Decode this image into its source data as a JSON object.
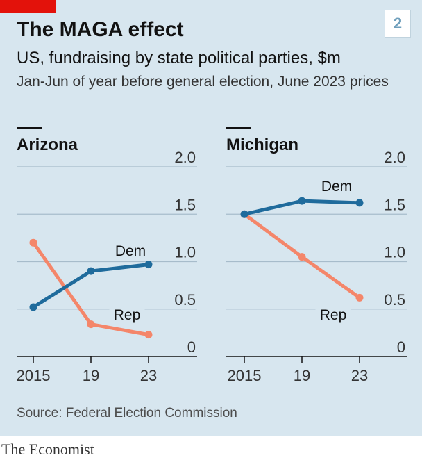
{
  "header": {
    "title": "The MAGA effect",
    "chart_number": "2",
    "subtitle": "US, fundraising by state political parties, $m",
    "note": "Jan-Jun of year before general election, June 2023 prices"
  },
  "footer": {
    "source": "Source: Federal Election Commission",
    "brand": "The Economist"
  },
  "colors": {
    "background": "#d7e6ef",
    "dem": "#1f6b9c",
    "rep": "#f4866a",
    "accent": "#e3120b"
  },
  "chart_data": [
    {
      "type": "line",
      "title": "Arizona",
      "x": [
        2015,
        2019,
        2023
      ],
      "x_tick_labels": [
        "2015",
        "19",
        "23"
      ],
      "ylim": [
        0,
        2.0
      ],
      "y_ticks": [
        0,
        0.5,
        1.0,
        1.5,
        2.0
      ],
      "y_tick_labels": [
        "0",
        "0.5",
        "1.0",
        "1.5",
        "2.0"
      ],
      "grid": true,
      "series": [
        {
          "name": "Dem",
          "color": "#1f6b9c",
          "values": [
            0.52,
            0.9,
            0.97
          ]
        },
        {
          "name": "Rep",
          "color": "#f4866a",
          "values": [
            1.2,
            0.34,
            0.23
          ]
        }
      ]
    },
    {
      "type": "line",
      "title": "Michigan",
      "x": [
        2015,
        2019,
        2023
      ],
      "x_tick_labels": [
        "2015",
        "19",
        "23"
      ],
      "ylim": [
        0,
        2.0
      ],
      "y_ticks": [
        0,
        0.5,
        1.0,
        1.5,
        2.0
      ],
      "y_tick_labels": [
        "0",
        "0.5",
        "1.0",
        "1.5",
        "2.0"
      ],
      "grid": true,
      "series": [
        {
          "name": "Dem",
          "color": "#1f6b9c",
          "values": [
            1.5,
            1.64,
            1.62
          ]
        },
        {
          "name": "Rep",
          "color": "#f4866a",
          "values": [
            1.5,
            1.05,
            0.62
          ]
        }
      ]
    }
  ]
}
